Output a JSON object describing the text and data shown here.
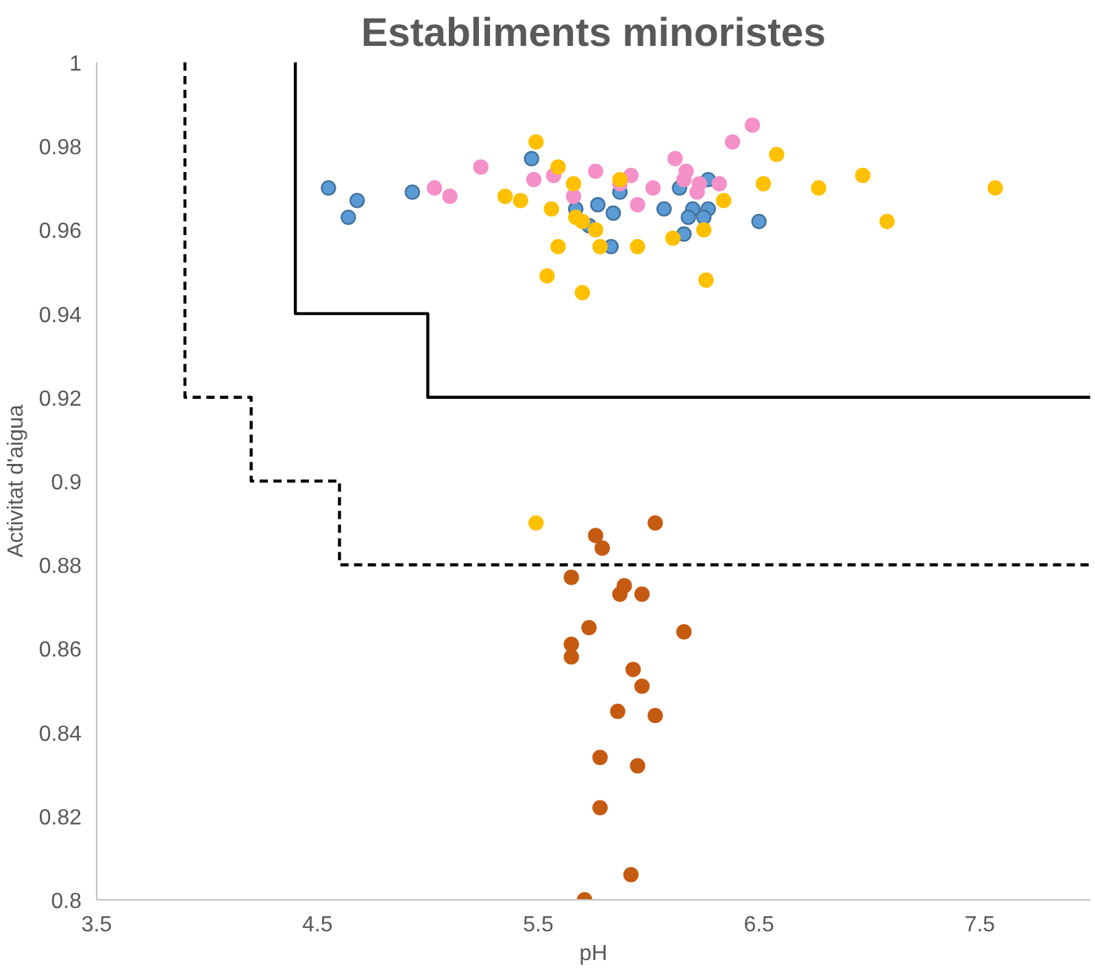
{
  "chart_data": {
    "type": "scatter",
    "title": "Establiments minoristes",
    "xlabel": "pH",
    "ylabel": "Activitat d'aigua",
    "xlim": [
      3.5,
      8
    ],
    "xticks": [
      3.5,
      4.5,
      5.5,
      6.5,
      7.5
    ],
    "ylim": [
      0.8,
      1
    ],
    "yticks": [
      0.8,
      0.82,
      0.84,
      0.86,
      0.88,
      0.9,
      0.92,
      0.94,
      0.96,
      0.98,
      1
    ],
    "grid": false,
    "marker": "circle",
    "series": [
      {
        "type": "line",
        "line_style": "solid",
        "marker": "none",
        "color": "#000000",
        "x": [
          4.4,
          4.4,
          5.0,
          5.0,
          8.0
        ],
        "values": [
          1.0,
          0.94,
          0.94,
          0.92,
          0.92
        ]
      },
      {
        "type": "line",
        "line_style": "dashed",
        "marker": "none",
        "color": "#000000",
        "x": [
          3.9,
          3.9,
          4.2,
          4.2,
          4.6,
          4.6,
          8.0
        ],
        "values": [
          1.0,
          0.92,
          0.92,
          0.9,
          0.9,
          0.88,
          0.88
        ]
      },
      {
        "color": "#5b9bd5",
        "x": [
          4.55,
          4.64,
          4.68,
          4.93,
          5.47,
          5.67,
          5.77,
          5.84,
          5.73,
          5.87,
          5.83,
          6.07,
          6.14,
          6.2,
          6.27,
          6.18,
          6.25,
          6.16,
          6.27,
          6.5
        ],
        "values": [
          0.97,
          0.963,
          0.967,
          0.969,
          0.977,
          0.965,
          0.966,
          0.964,
          0.961,
          0.969,
          0.956,
          0.965,
          0.97,
          0.965,
          0.965,
          0.963,
          0.963,
          0.959,
          0.972,
          0.962
        ]
      },
      {
        "color": "#f590c8",
        "x": [
          5.03,
          5.1,
          5.24,
          5.48,
          5.57,
          5.76,
          5.66,
          5.87,
          5.92,
          6.02,
          5.95,
          6.12,
          6.17,
          6.16,
          6.23,
          6.22,
          6.32,
          6.38,
          6.47
        ],
        "values": [
          0.97,
          0.968,
          0.975,
          0.972,
          0.973,
          0.974,
          0.968,
          0.971,
          0.973,
          0.97,
          0.966,
          0.977,
          0.974,
          0.972,
          0.971,
          0.969,
          0.971,
          0.981,
          0.985
        ]
      },
      {
        "color": "#ffc000",
        "x": [
          5.35,
          5.42,
          5.49,
          5.59,
          5.66,
          5.56,
          5.67,
          5.7,
          5.76,
          5.87,
          5.59,
          5.78,
          5.95,
          5.54,
          5.7,
          6.11,
          6.25,
          6.26,
          6.34,
          6.52,
          6.58,
          6.77,
          6.97,
          7.08,
          7.57,
          5.49
        ],
        "values": [
          0.968,
          0.967,
          0.981,
          0.975,
          0.971,
          0.965,
          0.963,
          0.962,
          0.96,
          0.972,
          0.956,
          0.956,
          0.956,
          0.949,
          0.945,
          0.958,
          0.96,
          0.948,
          0.967,
          0.971,
          0.978,
          0.97,
          0.973,
          0.962,
          0.97,
          0.89
        ]
      },
      {
        "color": "#c55a11",
        "x": [
          5.76,
          5.79,
          6.03,
          5.65,
          5.89,
          5.87,
          5.97,
          5.73,
          6.16,
          5.65,
          5.65,
          5.93,
          5.97,
          5.86,
          6.03,
          5.78,
          5.95,
          5.78,
          5.92,
          5.71
        ],
        "values": [
          0.887,
          0.884,
          0.89,
          0.877,
          0.875,
          0.873,
          0.873,
          0.865,
          0.864,
          0.861,
          0.858,
          0.855,
          0.851,
          0.845,
          0.844,
          0.834,
          0.832,
          0.822,
          0.806,
          0.8
        ]
      }
    ]
  }
}
